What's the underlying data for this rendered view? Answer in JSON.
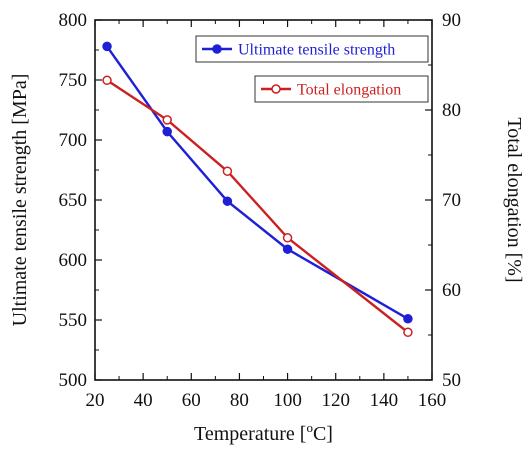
{
  "chart_data": {
    "type": "line",
    "xlabel": "Temperature [°C]",
    "xlabel_parts": {
      "main": "Temperature [",
      "sup": "o",
      "end": "C]"
    },
    "ylabel_left": "Ultimate tensile strength [MPa]",
    "ylabel_right": "Total elongation [%]",
    "xlim": [
      20,
      160
    ],
    "ylim_left": [
      500,
      800
    ],
    "ylim_right": [
      50,
      90
    ],
    "x_ticks": [
      20,
      40,
      60,
      80,
      100,
      120,
      140,
      160
    ],
    "y_ticks_left": [
      500,
      550,
      600,
      650,
      700,
      750,
      800
    ],
    "y_ticks_right": [
      50,
      60,
      70,
      80,
      90
    ],
    "grid": false,
    "legend_placement": "top-right",
    "series": [
      {
        "name": "Ultimate tensile strength",
        "axis": "left",
        "color": "#1f1fd6",
        "marker": "filled-circle",
        "x": [
          25,
          50,
          75,
          100,
          150
        ],
        "y": [
          778,
          707,
          649,
          609,
          551
        ]
      },
      {
        "name": "Total elongation",
        "axis": "right",
        "color": "#cc1f1f",
        "marker": "open-circle",
        "x": [
          25,
          50,
          75,
          100,
          150
        ],
        "y": [
          83.3,
          78.9,
          73.2,
          65.8,
          55.3
        ]
      }
    ]
  }
}
